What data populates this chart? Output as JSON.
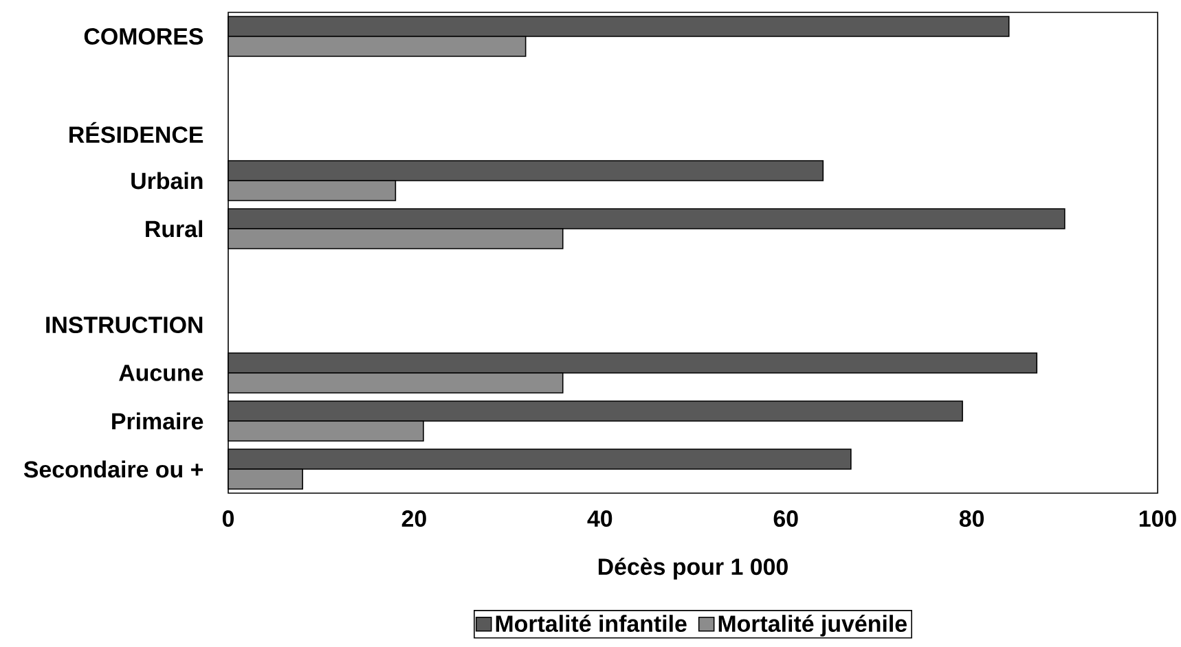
{
  "chart_data": {
    "type": "bar",
    "orientation": "horizontal",
    "categories": [
      "COMORES",
      null,
      "RÉSIDENCE",
      "Urbain",
      "Rural",
      null,
      "INSTRUCTION",
      "Aucune",
      "Primaire",
      "Secondaire ou +"
    ],
    "series": [
      {
        "name": "Mortalité infantile",
        "color": "#595959",
        "values": [
          84,
          null,
          null,
          64,
          90,
          null,
          null,
          87,
          79,
          67
        ]
      },
      {
        "name": "Mortalité juvénile",
        "color": "#8c8c8c",
        "values": [
          32,
          null,
          null,
          18,
          36,
          null,
          null,
          36,
          21,
          8
        ]
      }
    ],
    "xlabel": "Décès pour 1 000",
    "xlim": [
      0,
      100
    ],
    "xticks": [
      0,
      20,
      40,
      60,
      80,
      100
    ],
    "legend": "bottom"
  }
}
